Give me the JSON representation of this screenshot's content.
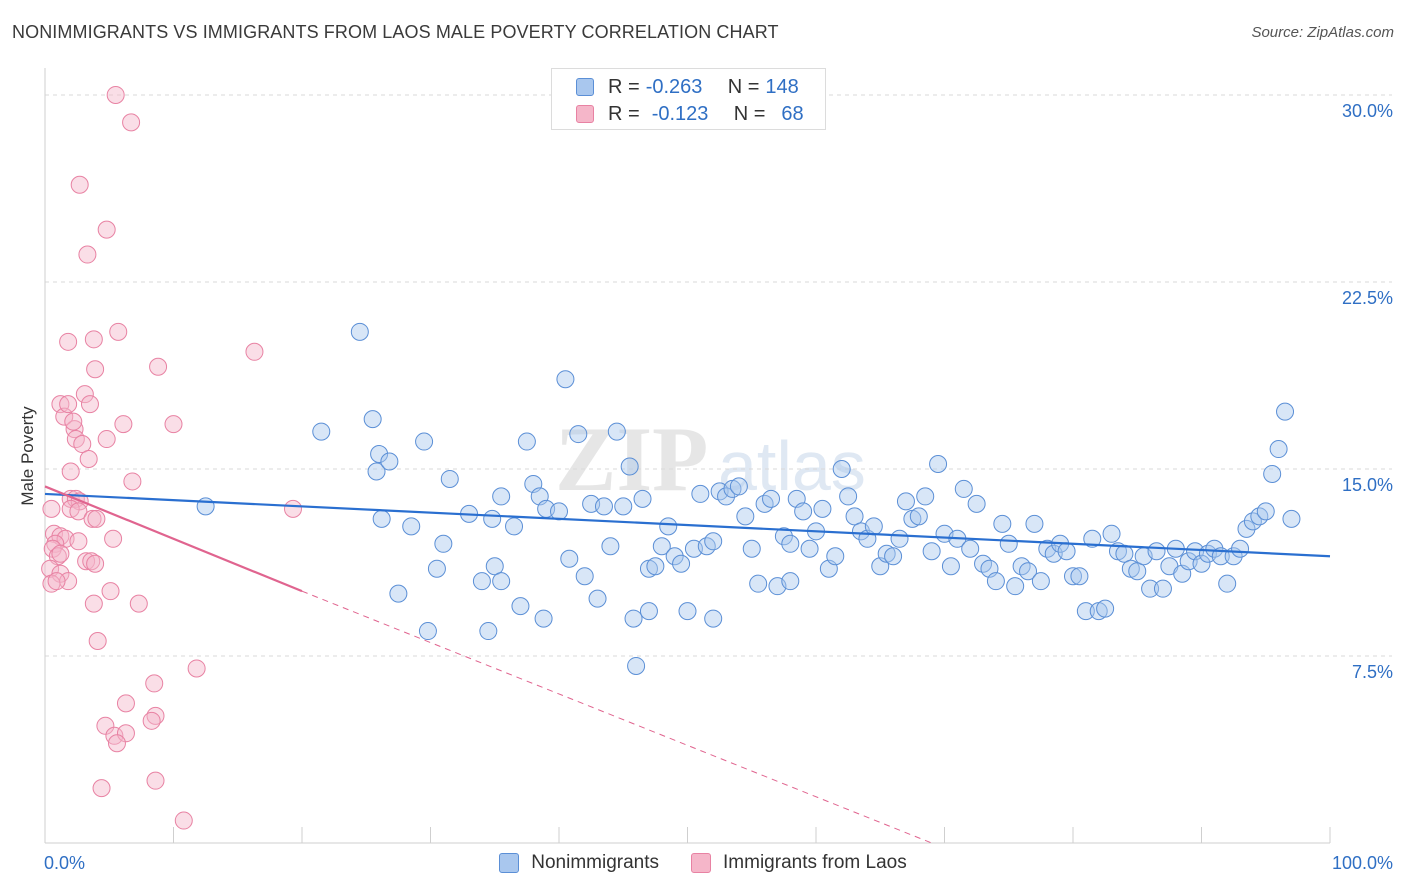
{
  "header": {
    "title": "NONIMMIGRANTS VS IMMIGRANTS FROM LAOS MALE POVERTY CORRELATION CHART",
    "source": "Source: ZipAtlas.com"
  },
  "watermark": {
    "part1": "ZIP",
    "part2": "atlas"
  },
  "legend_top": {
    "rows": [
      {
        "r_label": "R =",
        "r_value": "-0.263",
        "n_label": "N =",
        "n_value": "148"
      },
      {
        "r_label": "R =",
        "r_value": "-0.123",
        "n_label": "N =",
        "n_value": "68"
      }
    ]
  },
  "legend_bottom": {
    "items": [
      {
        "label": "Nonimmigrants"
      },
      {
        "label": "Immigrants from Laos"
      }
    ]
  },
  "colors": {
    "blue_fill": "#a9c7ee",
    "blue_stroke": "#5b8fd6",
    "blue_line": "#2a6fd0",
    "pink_fill": "#f5b6c9",
    "pink_stroke": "#e882a3",
    "pink_line": "#e0648f",
    "grid": "#d9d9d9",
    "axis_label": "#2f6fc4"
  },
  "chart_data": {
    "type": "scatter",
    "title": "NONIMMIGRANTS VS IMMIGRANTS FROM LAOS MALE POVERTY CORRELATION CHART",
    "xlabel": "",
    "ylabel": "Male Poverty",
    "xlim": [
      0,
      100
    ],
    "ylim": [
      0,
      30.6
    ],
    "x_tick_labels": [
      "0.0%",
      "100.0%"
    ],
    "y_ticks": [
      7.5,
      15.0,
      22.5,
      30.0
    ],
    "y_tick_labels": [
      "7.5%",
      "15.0%",
      "22.5%",
      "30.0%"
    ],
    "series": [
      {
        "name": "Nonimmigrants",
        "color": "blue",
        "r": -0.263,
        "n": 148,
        "trend": {
          "x0": 0,
          "y0": 14.0,
          "x1": 100,
          "y1": 11.5,
          "dashed_to": null
        },
        "points": [
          [
            12.5,
            13.5
          ],
          [
            24.5,
            20.5
          ],
          [
            21.5,
            16.5
          ],
          [
            25.5,
            17.0
          ],
          [
            25.8,
            14.9
          ],
          [
            26.0,
            15.6
          ],
          [
            26.8,
            15.3
          ],
          [
            26.2,
            13.0
          ],
          [
            27.5,
            10.0
          ],
          [
            29.5,
            16.1
          ],
          [
            28.5,
            12.7
          ],
          [
            29.8,
            8.5
          ],
          [
            30.5,
            11.0
          ],
          [
            31.0,
            12.0
          ],
          [
            31.5,
            14.6
          ],
          [
            33.0,
            13.2
          ],
          [
            34.0,
            10.5
          ],
          [
            34.5,
            8.5
          ],
          [
            34.8,
            13.0
          ],
          [
            35.0,
            11.1
          ],
          [
            35.5,
            13.9
          ],
          [
            36.5,
            12.7
          ],
          [
            37.0,
            9.5
          ],
          [
            37.5,
            16.1
          ],
          [
            38.0,
            14.4
          ],
          [
            38.5,
            13.9
          ],
          [
            38.8,
            9.0
          ],
          [
            39.0,
            13.4
          ],
          [
            40.0,
            13.3
          ],
          [
            40.5,
            18.6
          ],
          [
            40.8,
            11.4
          ],
          [
            41.5,
            16.4
          ],
          [
            42.0,
            10.7
          ],
          [
            42.5,
            13.6
          ],
          [
            43.0,
            9.8
          ],
          [
            43.5,
            13.5
          ],
          [
            44.0,
            11.9
          ],
          [
            44.5,
            16.5
          ],
          [
            45.0,
            13.5
          ],
          [
            45.5,
            15.1
          ],
          [
            45.8,
            9.0
          ],
          [
            46.0,
            7.1
          ],
          [
            46.5,
            13.8
          ],
          [
            47.0,
            11.0
          ],
          [
            47.5,
            11.1
          ],
          [
            48.0,
            11.9
          ],
          [
            48.5,
            12.7
          ],
          [
            49.0,
            11.5
          ],
          [
            49.5,
            11.2
          ],
          [
            50.0,
            9.3
          ],
          [
            50.5,
            11.8
          ],
          [
            51.0,
            14.0
          ],
          [
            51.5,
            11.9
          ],
          [
            52.0,
            12.1
          ],
          [
            52.5,
            14.1
          ],
          [
            53.0,
            13.9
          ],
          [
            53.5,
            14.2
          ],
          [
            54.0,
            14.3
          ],
          [
            54.5,
            13.1
          ],
          [
            55.0,
            11.8
          ],
          [
            55.5,
            10.4
          ],
          [
            56.0,
            13.6
          ],
          [
            56.5,
            13.8
          ],
          [
            57.0,
            10.3
          ],
          [
            57.5,
            12.3
          ],
          [
            58.0,
            10.5
          ],
          [
            58.5,
            13.8
          ],
          [
            59.0,
            13.3
          ],
          [
            59.5,
            11.8
          ],
          [
            60.0,
            12.5
          ],
          [
            60.5,
            13.4
          ],
          [
            61.0,
            11.0
          ],
          [
            61.5,
            11.5
          ],
          [
            62.0,
            15.0
          ],
          [
            62.5,
            13.9
          ],
          [
            63.0,
            13.1
          ],
          [
            63.5,
            12.5
          ],
          [
            64.0,
            12.2
          ],
          [
            64.5,
            12.7
          ],
          [
            65.0,
            11.1
          ],
          [
            65.5,
            11.6
          ],
          [
            66.0,
            11.5
          ],
          [
            66.5,
            12.2
          ],
          [
            67.0,
            13.7
          ],
          [
            67.5,
            13.0
          ],
          [
            68.0,
            13.1
          ],
          [
            68.5,
            13.9
          ],
          [
            69.0,
            11.7
          ],
          [
            69.5,
            15.2
          ],
          [
            70.0,
            12.4
          ],
          [
            70.5,
            11.1
          ],
          [
            71.0,
            12.2
          ],
          [
            71.5,
            14.2
          ],
          [
            72.0,
            11.8
          ],
          [
            72.5,
            13.6
          ],
          [
            73.0,
            11.2
          ],
          [
            73.5,
            11.0
          ],
          [
            74.0,
            10.5
          ],
          [
            74.5,
            12.8
          ],
          [
            75.0,
            12.0
          ],
          [
            75.5,
            10.3
          ],
          [
            76.0,
            11.1
          ],
          [
            76.5,
            10.9
          ],
          [
            77.0,
            12.8
          ],
          [
            77.5,
            10.5
          ],
          [
            78.0,
            11.8
          ],
          [
            78.5,
            11.6
          ],
          [
            79.0,
            12.0
          ],
          [
            79.5,
            11.7
          ],
          [
            80.0,
            10.7
          ],
          [
            80.5,
            10.7
          ],
          [
            81.0,
            9.3
          ],
          [
            81.5,
            12.2
          ],
          [
            82.0,
            9.3
          ],
          [
            82.5,
            9.4
          ],
          [
            83.0,
            12.4
          ],
          [
            83.5,
            11.7
          ],
          [
            84.0,
            11.6
          ],
          [
            84.5,
            11.0
          ],
          [
            85.0,
            10.9
          ],
          [
            85.5,
            11.5
          ],
          [
            86.0,
            10.2
          ],
          [
            86.5,
            11.7
          ],
          [
            87.0,
            10.2
          ],
          [
            87.5,
            11.1
          ],
          [
            88.0,
            11.8
          ],
          [
            88.5,
            10.8
          ],
          [
            89.0,
            11.3
          ],
          [
            89.5,
            11.7
          ],
          [
            90.0,
            11.2
          ],
          [
            90.5,
            11.6
          ],
          [
            91.0,
            11.8
          ],
          [
            91.5,
            11.5
          ],
          [
            92.0,
            10.4
          ],
          [
            92.5,
            11.5
          ],
          [
            93.0,
            11.8
          ],
          [
            93.5,
            12.6
          ],
          [
            94.0,
            12.9
          ],
          [
            94.5,
            13.1
          ],
          [
            95.0,
            13.3
          ],
          [
            95.5,
            14.8
          ],
          [
            96.0,
            15.8
          ],
          [
            96.5,
            17.3
          ],
          [
            97.0,
            13.0
          ],
          [
            47.0,
            9.3
          ],
          [
            52.0,
            9.0
          ],
          [
            35.5,
            10.5
          ],
          [
            58.0,
            12.0
          ]
        ]
      },
      {
        "name": "Immigrants from Laos",
        "color": "pink",
        "r": -0.123,
        "n": 68,
        "trend": {
          "x0": 0,
          "y0": 14.3,
          "x1": 20,
          "y1": 10.1,
          "dashed_to": {
            "x": 69,
            "y": 0
          }
        },
        "points": [
          [
            5.5,
            30.0
          ],
          [
            6.7,
            28.9
          ],
          [
            2.7,
            26.4
          ],
          [
            4.8,
            24.6
          ],
          [
            3.3,
            23.6
          ],
          [
            5.7,
            20.5
          ],
          [
            1.8,
            20.1
          ],
          [
            3.8,
            20.2
          ],
          [
            16.3,
            19.7
          ],
          [
            8.8,
            19.1
          ],
          [
            3.9,
            19.0
          ],
          [
            3.1,
            18.0
          ],
          [
            3.5,
            17.6
          ],
          [
            1.2,
            17.6
          ],
          [
            1.5,
            17.1
          ],
          [
            1.8,
            17.6
          ],
          [
            6.1,
            16.8
          ],
          [
            10.0,
            16.8
          ],
          [
            2.3,
            16.6
          ],
          [
            2.2,
            16.9
          ],
          [
            4.8,
            16.2
          ],
          [
            2.4,
            16.2
          ],
          [
            2.9,
            16.0
          ],
          [
            3.4,
            15.4
          ],
          [
            2.0,
            14.9
          ],
          [
            6.8,
            14.5
          ],
          [
            2.0,
            13.8
          ],
          [
            2.4,
            13.8
          ],
          [
            2.7,
            13.7
          ],
          [
            2.0,
            13.4
          ],
          [
            19.3,
            13.4
          ],
          [
            0.5,
            13.4
          ],
          [
            2.6,
            13.3
          ],
          [
            3.7,
            13.0
          ],
          [
            4.0,
            13.0
          ],
          [
            0.7,
            12.4
          ],
          [
            1.2,
            12.3
          ],
          [
            1.6,
            12.2
          ],
          [
            5.3,
            12.2
          ],
          [
            0.8,
            12.0
          ],
          [
            0.6,
            11.8
          ],
          [
            1.0,
            11.5
          ],
          [
            3.2,
            11.3
          ],
          [
            3.6,
            11.3
          ],
          [
            3.9,
            11.2
          ],
          [
            0.4,
            11.0
          ],
          [
            1.2,
            10.8
          ],
          [
            1.8,
            10.5
          ],
          [
            0.5,
            10.4
          ],
          [
            5.1,
            10.1
          ],
          [
            3.8,
            9.6
          ],
          [
            7.3,
            9.6
          ],
          [
            4.1,
            8.1
          ],
          [
            11.8,
            7.0
          ],
          [
            8.5,
            6.4
          ],
          [
            6.3,
            5.6
          ],
          [
            8.6,
            5.1
          ],
          [
            8.3,
            4.9
          ],
          [
            4.7,
            4.7
          ],
          [
            5.4,
            4.3
          ],
          [
            6.3,
            4.4
          ],
          [
            5.6,
            4.0
          ],
          [
            8.6,
            2.5
          ],
          [
            4.4,
            2.2
          ],
          [
            10.8,
            0.9
          ],
          [
            1.2,
            11.6
          ],
          [
            0.9,
            10.5
          ],
          [
            2.6,
            12.1
          ]
        ]
      }
    ]
  }
}
